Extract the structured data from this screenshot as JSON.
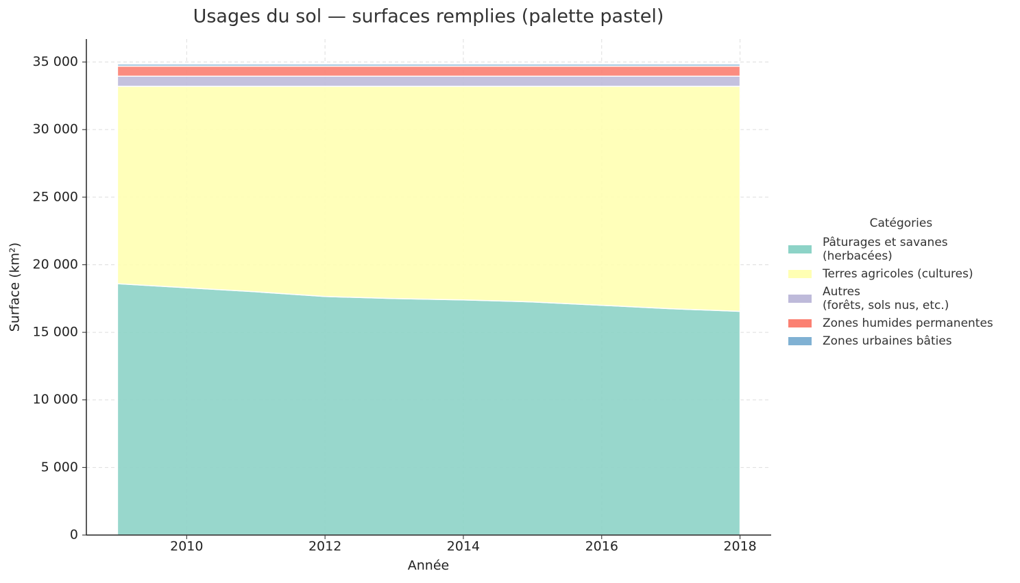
{
  "chart_data": {
    "type": "stackedarea",
    "title": "Usages du sol — surfaces remplies (palette pastel)",
    "x_label": "Année",
    "y_label": "Surface (km²)",
    "x": [
      2009,
      2010,
      2011,
      2012,
      2013,
      2014,
      2015,
      2016,
      2017,
      2018
    ],
    "series": [
      {
        "name": "Pâturages et savanes\n(herbacées)",
        "color": "#8dd3c7",
        "values": [
          18600,
          18300,
          18000,
          17650,
          17500,
          17400,
          17250,
          17000,
          16750,
          16550
        ]
      },
      {
        "name": "Terres agricoles (cultures)",
        "color": "#ffffb3",
        "values": [
          14600,
          14900,
          15200,
          15550,
          15700,
          15800,
          15950,
          16200,
          16450,
          16650
        ]
      },
      {
        "name": "Autres\n(forêts, sols nus, etc.)",
        "color": "#bebada",
        "values": [
          750,
          750,
          750,
          750,
          750,
          750,
          750,
          750,
          750,
          750
        ]
      },
      {
        "name": "Zones humides permanentes",
        "color": "#fb8072",
        "values": [
          750,
          750,
          750,
          750,
          750,
          750,
          750,
          750,
          750,
          750
        ]
      },
      {
        "name": "Zones urbaines bâties",
        "color": "#80b1d3",
        "values": [
          150,
          150,
          150,
          150,
          150,
          150,
          150,
          150,
          150,
          150
        ]
      }
    ],
    "legend_title": "Catégories",
    "legend": "right",
    "xlim": [
      2008.55,
      2018.45
    ],
    "xticks": [
      2010,
      2012,
      2014,
      2016,
      2018
    ],
    "ylim": [
      0,
      36700
    ],
    "yticks": [
      0,
      {
        "value": 5000,
        "label": "5 000"
      },
      {
        "value": 10000,
        "label": "10 000"
      },
      {
        "value": 15000,
        "label": "15 000"
      },
      {
        "value": 20000,
        "label": "20 000"
      },
      {
        "value": 25000,
        "label": "25 000"
      },
      {
        "value": 30000,
        "label": "30 000"
      },
      {
        "value": 35000,
        "label": "35 000"
      }
    ],
    "grid": true
  }
}
